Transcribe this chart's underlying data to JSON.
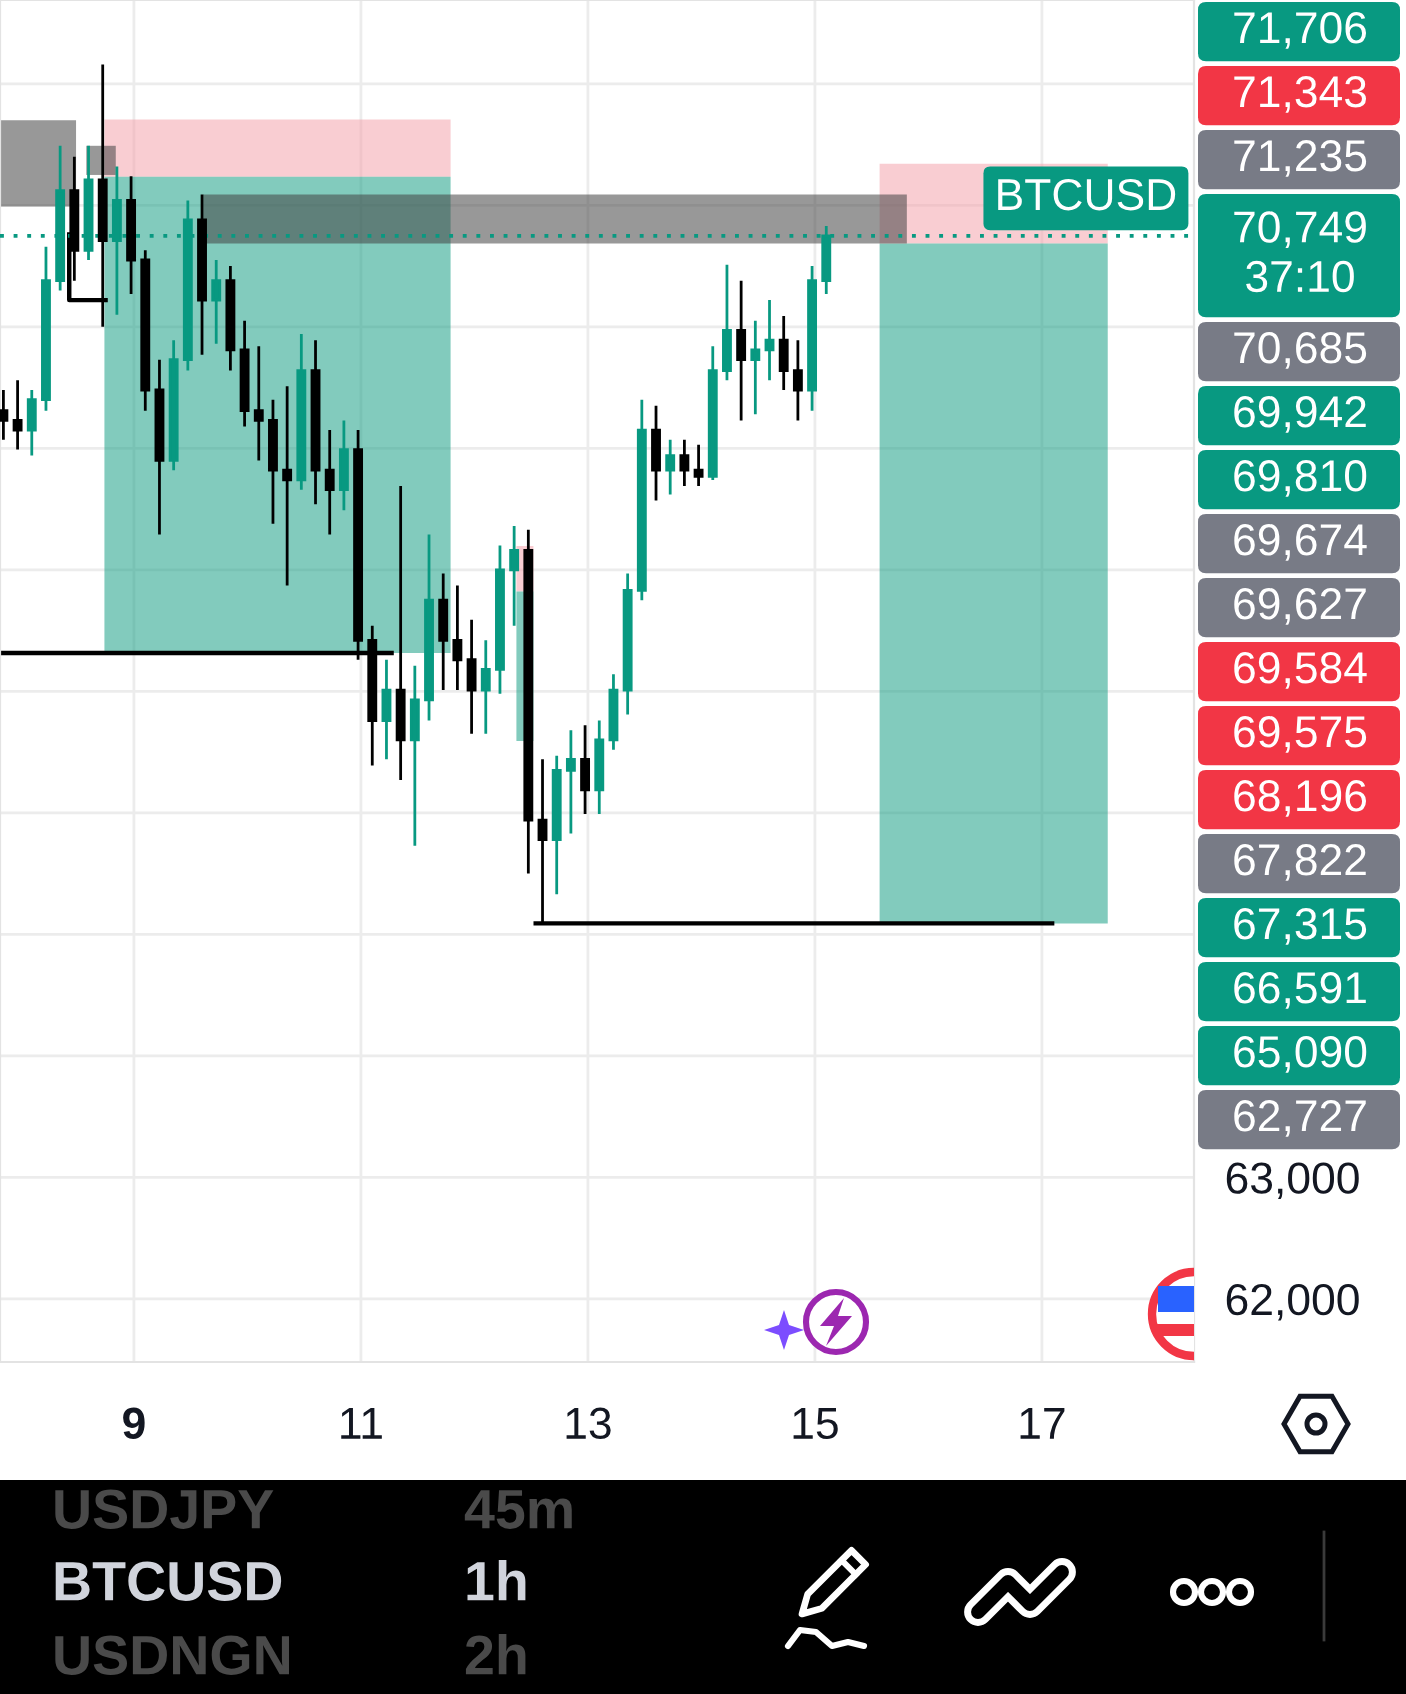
{
  "chart_data": {
    "type": "candlestick",
    "x": [
      7.85,
      7.975,
      8.1,
      8.225,
      8.35,
      8.475,
      8.6,
      8.725,
      8.85,
      8.975,
      9.1,
      9.225,
      9.35,
      9.475,
      9.6,
      9.725,
      9.85,
      9.975,
      10.1,
      10.225,
      10.35,
      10.475,
      10.6,
      10.725,
      10.85,
      10.975,
      11.1,
      11.225,
      11.35,
      11.475,
      11.6,
      11.725,
      11.85,
      11.975,
      12.1,
      12.225,
      12.35,
      12.475,
      12.6,
      12.725,
      12.85,
      12.975,
      13.1,
      13.225,
      13.35,
      13.475,
      13.6,
      13.725,
      13.85,
      13.975,
      14.1,
      14.225,
      14.35,
      14.475,
      14.6,
      14.725,
      14.85,
      14.975,
      15.1
    ],
    "ohlc": [
      [
        69310,
        69480,
        69070,
        69230
      ],
      [
        69230,
        69560,
        68990,
        69150
      ],
      [
        69150,
        69480,
        68940,
        69400
      ],
      [
        69400,
        70660,
        69310,
        70380
      ],
      [
        70380,
        71490,
        70300,
        71120
      ],
      [
        71120,
        71400,
        70380,
        70630
      ],
      [
        70630,
        71490,
        70550,
        71210
      ],
      [
        71210,
        72160,
        70000,
        70710
      ],
      [
        70710,
        71320,
        70100,
        71040
      ],
      [
        71040,
        71240,
        70270,
        70550
      ],
      [
        70550,
        70630,
        69310,
        69480
      ],
      [
        69480,
        69730,
        68290,
        68900
      ],
      [
        68900,
        69890,
        68820,
        69730
      ],
      [
        69730,
        71040,
        69640,
        70880
      ],
      [
        70880,
        71090,
        69770,
        70220
      ],
      [
        70220,
        70550,
        69860,
        70380
      ],
      [
        70380,
        70500,
        69640,
        69810
      ],
      [
        69810,
        70050,
        69180,
        69310
      ],
      [
        69310,
        69840,
        68900,
        69230
      ],
      [
        69230,
        69400,
        68380,
        68820
      ],
      [
        68820,
        69510,
        67870,
        68740
      ],
      [
        68740,
        69940,
        68660,
        69640
      ],
      [
        69640,
        69890,
        68540,
        68820
      ],
      [
        68820,
        69150,
        68290,
        68660
      ],
      [
        68660,
        69230,
        68490,
        68990
      ],
      [
        68990,
        69150,
        67260,
        67420
      ],
      [
        67420,
        67540,
        66390,
        66760
      ],
      [
        66760,
        67260,
        66440,
        67010
      ],
      [
        67010,
        68690,
        66270,
        66600
      ],
      [
        66600,
        67210,
        65730,
        66930
      ],
      [
        66930,
        68290,
        66760,
        67750
      ],
      [
        67750,
        67970,
        67010,
        67420
      ],
      [
        67420,
        67870,
        67010,
        67260
      ],
      [
        67260,
        67590,
        66650,
        67010
      ],
      [
        67010,
        67420,
        66650,
        67180
      ],
      [
        67180,
        68200,
        66980,
        68000
      ],
      [
        68000,
        68360,
        67540,
        68160
      ],
      [
        68160,
        68330,
        65500,
        65940
      ],
      [
        65940,
        66440,
        65090,
        65780
      ],
      [
        65780,
        66470,
        65330,
        66350
      ],
      [
        66350,
        66680,
        65830,
        66440
      ],
      [
        66440,
        66720,
        65990,
        66190
      ],
      [
        66190,
        66760,
        65990,
        66600
      ],
      [
        66600,
        67140,
        66520,
        67010
      ],
      [
        67010,
        67970,
        66810,
        67830
      ],
      [
        67830,
        69400,
        67750,
        69150
      ],
      [
        69150,
        69350,
        68570,
        68820
      ],
      [
        68820,
        69070,
        68620,
        68940
      ],
      [
        68940,
        69070,
        68690,
        68820
      ],
      [
        68820,
        69030,
        68690,
        68770
      ],
      [
        68770,
        69840,
        68740,
        69640
      ],
      [
        69640,
        70510,
        69560,
        69970
      ],
      [
        69970,
        70380,
        69230,
        69730
      ],
      [
        69730,
        70050,
        69280,
        69810
      ],
      [
        69810,
        70220,
        69560,
        69890
      ],
      [
        69890,
        70090,
        69480,
        69640
      ],
      [
        69640,
        69890,
        69230,
        69480
      ],
      [
        69480,
        70500,
        69310,
        70380
      ],
      [
        70380,
        70830,
        70270,
        70749
      ]
    ],
    "colors": [
      "#000000",
      "#000000",
      "#089981",
      "#089981",
      "#089981",
      "#000000",
      "#089981",
      "#000000",
      "#089981",
      "#000000",
      "#000000",
      "#000000",
      "#089981",
      "#089981",
      "#000000",
      "#089981",
      "#000000",
      "#000000",
      "#000000",
      "#000000",
      "#000000",
      "#089981",
      "#000000",
      "#000000",
      "#089981",
      "#000000",
      "#000000",
      "#089981",
      "#000000",
      "#089981",
      "#089981",
      "#000000",
      "#000000",
      "#000000",
      "#089981",
      "#089981",
      "#089981",
      "#000000",
      "#000000",
      "#089981",
      "#089981",
      "#000000",
      "#089981",
      "#089981",
      "#089981",
      "#089981",
      "#000000",
      "#089981",
      "#000000",
      "#000000",
      "#089981",
      "#089981",
      "#000000",
      "#089981",
      "#089981",
      "#000000",
      "#000000",
      "#089981",
      "#089981"
    ],
    "series": [
      {
        "type": "line",
        "x": [
          8.74,
          11.79
        ],
        "values": [
          null,
          null
        ],
        "lower": [
          71235,
          71235
        ],
        "upper": [
          71706,
          71706
        ],
        "color": "#f4a4ad"
      },
      {
        "type": "line",
        "x": [
          8.74,
          11.79
        ],
        "values": [
          null,
          null
        ],
        "lower": [
          67315,
          67315
        ],
        "upper": [
          71235,
          71235
        ],
        "color": "#1ca087"
      },
      {
        "type": "line",
        "x": [
          12.37,
          12.52
        ],
        "values": [
          null,
          null
        ],
        "lower": [
          67822,
          67822
        ],
        "upper": [
          68196,
          68196
        ],
        "color": "#f4a4ad"
      },
      {
        "type": "line",
        "x": [
          12.37,
          12.52
        ],
        "values": [
          null,
          null
        ],
        "lower": [
          66591,
          66591
        ],
        "upper": [
          67822,
          67822
        ],
        "color": "#1ca087"
      },
      {
        "type": "line",
        "x": [
          15.57,
          17.58
        ],
        "values": [
          null,
          null
        ],
        "lower": [
          70685,
          70685
        ],
        "upper": [
          71343,
          71343
        ],
        "color": "#f4a4ad"
      },
      {
        "type": "line",
        "x": [
          15.57,
          17.58
        ],
        "values": [
          null,
          null
        ],
        "lower": [
          65090,
          65090
        ],
        "upper": [
          70685,
          70685
        ],
        "color": "#1ca087"
      },
      {
        "type": "line",
        "x": [
          7.82,
          8.49
        ],
        "values": [
          null,
          null
        ],
        "lower": [
          70990,
          70990
        ],
        "upper": [
          71700,
          71700
        ],
        "color": "#444444"
      },
      {
        "type": "line",
        "x": [
          8.58,
          8.84
        ],
        "values": [
          null,
          null
        ],
        "lower": [
          71250,
          71250
        ],
        "upper": [
          71490,
          71490
        ],
        "color": "#444444"
      },
      {
        "type": "line",
        "x": [
          9.61,
          15.81
        ],
        "values": [
          null,
          null
        ],
        "lower": [
          70685,
          70685
        ],
        "upper": [
          71090,
          71090
        ],
        "color": "#444444"
      },
      {
        "type": "line",
        "x": [
          7.82,
          11.27
        ],
        "values": [
          67315,
          67315
        ],
        "color": "#000000"
      },
      {
        "type": "line",
        "x": [
          12.54,
          17.09
        ],
        "values": [
          65090,
          65090
        ],
        "color": "#000000"
      },
      {
        "type": "line",
        "x": [
          8.43,
          8.43,
          8.75
        ],
        "values": [
          70760,
          70220,
          70220
        ],
        "color": "#000000"
      }
    ],
    "ref_lines": [
      {
        "axis": "y",
        "value": 70749,
        "label": "BTCUSD",
        "color": "#089981",
        "line_style": "dotted"
      }
    ],
    "xlim": [
      7.82,
      18.34
    ],
    "ylim": [
      61480,
      72690
    ],
    "xticks": [
      9,
      11,
      13,
      15,
      17
    ],
    "yticks": [
      {
        "value": 72000,
        "label": null
      },
      {
        "value": 71000,
        "label": null
      },
      {
        "value": 70000,
        "label": null
      },
      {
        "value": 69000,
        "label": null
      },
      {
        "value": 68000,
        "label": null
      },
      {
        "value": 67000,
        "label": null
      },
      {
        "value": 66000,
        "label": null
      },
      {
        "value": 65000,
        "label": null
      },
      {
        "value": 64000,
        "label": null
      },
      {
        "value": 63000,
        "label": "63,000"
      },
      {
        "value": 62000,
        "label": "62,000"
      }
    ],
    "grid": true,
    "annotations": [
      "71,706",
      "71,343",
      "71,235",
      "70,749\n37:10",
      "70,685",
      "69,942",
      "69,810",
      "69,674",
      "69,627",
      "69,584",
      "69,575",
      "68,196",
      "67,822",
      "67,315",
      "66,591",
      "65,090",
      "62,727",
      "USDJPY",
      "45m",
      "BTCUSD",
      "1h",
      "USDNGN",
      "2h"
    ]
  }
}
